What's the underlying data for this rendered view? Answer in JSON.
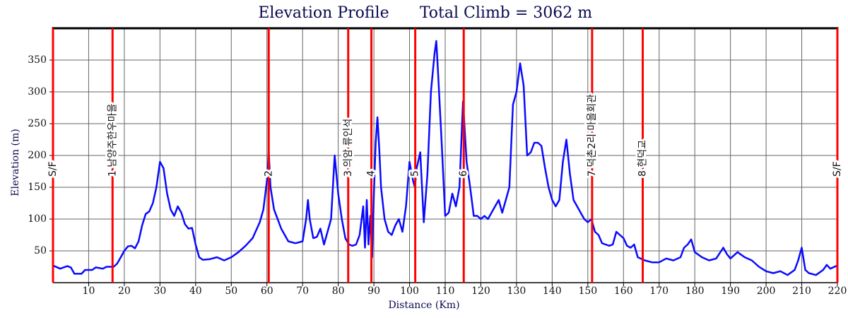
{
  "chart_data": {
    "type": "line",
    "title": "Elevation Profile",
    "subtitle": "Total Climb = 3062 m",
    "x_label": "Distance (Km)",
    "y_label": "Elevation (m)",
    "color": "#0a0aff",
    "marker_color": "#ff0000",
    "grid": true,
    "xlim": [
      0,
      220
    ],
    "ylim": [
      0,
      400
    ],
    "xticks": [
      10,
      20,
      30,
      40,
      50,
      60,
      70,
      80,
      90,
      100,
      110,
      120,
      130,
      140,
      150,
      160,
      170,
      180,
      190,
      200,
      210,
      220
    ],
    "yticks": [
      50,
      100,
      150,
      200,
      250,
      300,
      350
    ],
    "markers": [
      {
        "x": 0,
        "label": "S/F"
      },
      {
        "x": 16.7,
        "label": "1 남양주한우마을"
      },
      {
        "x": 60.5,
        "label": "2"
      },
      {
        "x": 82.8,
        "label": "3 의암 류인석"
      },
      {
        "x": 89.3,
        "label": "4"
      },
      {
        "x": 101.6,
        "label": "5"
      },
      {
        "x": 115.2,
        "label": "6"
      },
      {
        "x": 151.2,
        "label": "7 덕촌2리 마을회관"
      },
      {
        "x": 165.4,
        "label": "8 현덕교"
      },
      {
        "x": 220,
        "label": "S/F"
      }
    ],
    "x": [
      0,
      2,
      4,
      5,
      6,
      8,
      9,
      11,
      12,
      14,
      15,
      17,
      18,
      19,
      20,
      21,
      22,
      23,
      24,
      25,
      26,
      27,
      28,
      29,
      30,
      31,
      32,
      33,
      34,
      35,
      36,
      37,
      38,
      39,
      40,
      41,
      42,
      44,
      46,
      48,
      50,
      52,
      54,
      56,
      58,
      59,
      60,
      60.5,
      61,
      62,
      63,
      64,
      66,
      68,
      70,
      71,
      71.5,
      72,
      73,
      74,
      75,
      76,
      78,
      79,
      80,
      81,
      82,
      83,
      84,
      85,
      86,
      87,
      87.5,
      88,
      88.5,
      89,
      89.5,
      90,
      90.5,
      91,
      91.5,
      92,
      93,
      94,
      95,
      96,
      97,
      98,
      99,
      100,
      101,
      101.5,
      102,
      103,
      104,
      105,
      106,
      107,
      107.5,
      108,
      109,
      110,
      111,
      112,
      113,
      114,
      115,
      116,
      117,
      118,
      119,
      120,
      121,
      122,
      124,
      125,
      126,
      128,
      129,
      130,
      131,
      132,
      133,
      134,
      135,
      136,
      137,
      138,
      139,
      140,
      141,
      142,
      143,
      144,
      145,
      146,
      147,
      148,
      149,
      150,
      151,
      152,
      153,
      154,
      155,
      156,
      157,
      158,
      159,
      160,
      161,
      162,
      163,
      164,
      166,
      168,
      170,
      172,
      174,
      176,
      177,
      178,
      179,
      180,
      182,
      184,
      186,
      188,
      189,
      190,
      192,
      194,
      196,
      198,
      200,
      202,
      204,
      206,
      208,
      209,
      210,
      211,
      212,
      214,
      216,
      217,
      218,
      220
    ],
    "values": [
      27,
      22,
      26,
      24,
      14,
      14,
      20,
      20,
      24,
      22,
      25,
      25,
      30,
      40,
      50,
      57,
      58,
      54,
      65,
      90,
      108,
      112,
      125,
      150,
      190,
      180,
      140,
      115,
      105,
      120,
      110,
      92,
      85,
      86,
      60,
      40,
      36,
      37,
      40,
      35,
      40,
      48,
      58,
      70,
      95,
      115,
      160,
      205,
      150,
      115,
      100,
      85,
      65,
      62,
      65,
      100,
      130,
      100,
      70,
      72,
      85,
      60,
      100,
      200,
      140,
      100,
      70,
      60,
      58,
      60,
      75,
      120,
      55,
      130,
      60,
      105,
      40,
      140,
      220,
      260,
      210,
      150,
      100,
      80,
      75,
      90,
      100,
      80,
      120,
      190,
      160,
      150,
      180,
      205,
      95,
      170,
      300,
      360,
      380,
      330,
      220,
      105,
      110,
      140,
      120,
      150,
      285,
      190,
      150,
      105,
      105,
      100,
      105,
      100,
      120,
      130,
      110,
      150,
      280,
      300,
      345,
      310,
      200,
      205,
      220,
      220,
      215,
      180,
      150,
      130,
      120,
      130,
      190,
      225,
      170,
      130,
      120,
      110,
      100,
      95,
      100,
      80,
      75,
      62,
      60,
      58,
      60,
      80,
      75,
      70,
      58,
      55,
      60,
      40,
      35,
      32,
      32,
      38,
      35,
      40,
      55,
      60,
      68,
      48,
      40,
      35,
      38,
      55,
      45,
      38,
      48,
      40,
      35,
      25,
      18,
      15,
      18,
      12,
      20,
      35,
      55,
      20,
      15,
      12,
      20,
      28,
      22,
      27
    ]
  }
}
